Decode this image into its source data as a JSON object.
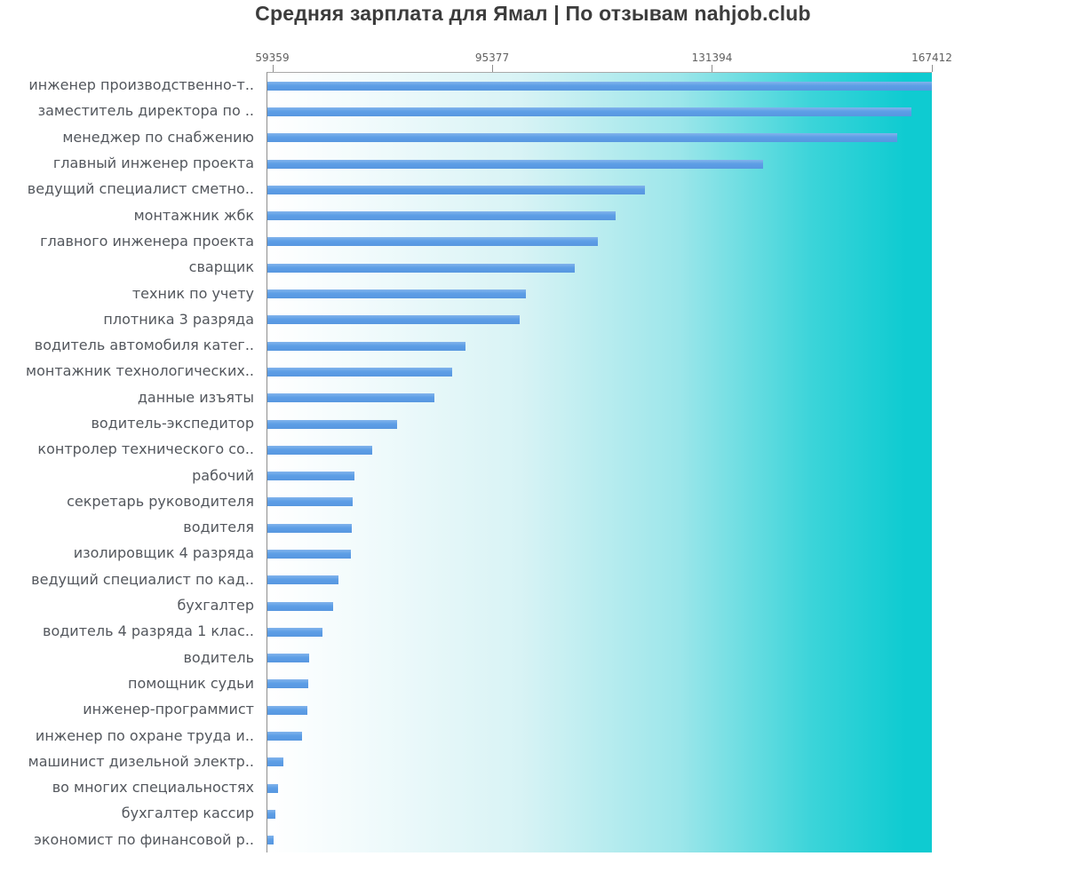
{
  "title": "Средняя зарплата для Ямал | По отзывам nahjob.club",
  "chart_data": {
    "type": "bar",
    "orientation": "horizontal",
    "title": "Средняя зарплата для Ямал | По отзывам nahjob.club",
    "xlabel": "",
    "ylabel": "",
    "x_ticks": [
      59359,
      95377,
      131394,
      167412
    ],
    "xlim": [
      58420,
      167412
    ],
    "grid": false,
    "legend": false,
    "categories": [
      "инженер производственно-т..",
      "заместитель директора по ..",
      "менеджер по снабжению",
      "главный инженер проекта",
      "ведущий специалист сметно..",
      "монтажник жбк",
      "главного инженера проекта",
      "сварщик",
      "техник по учету",
      "плотника 3 разряда",
      "водитель автомобиля катег..",
      "монтажник технологических..",
      "данные изъяты",
      "водитель-экспедитор",
      "контролер технического со..",
      "рабочий",
      "секретарь руководителя",
      "водителя",
      "изолировщик 4 разряда",
      "ведущий специалист по кад..",
      "бухгалтер",
      "водитель 4 разряда 1 клас..",
      "водитель",
      "помощник судьи",
      "инженер-программист",
      "инженер по охране труда и..",
      "машинист дизельной электр..",
      "во многих специальностях",
      "бухгалтер кассир",
      "экономист по финансовой р.."
    ],
    "values": [
      167412,
      163900,
      161600,
      139600,
      120200,
      115400,
      112600,
      108800,
      100700,
      99800,
      90800,
      88700,
      85800,
      79600,
      75600,
      72700,
      72400,
      72300,
      72100,
      70100,
      69200,
      67500,
      65300,
      65100,
      65000,
      64100,
      61000,
      60200,
      59700,
      59359
    ],
    "colors": {
      "bar": "#5b9ce4",
      "background_gradient_left": "#ffffff",
      "background_gradient_right": "#0fcbd1",
      "axis_line": "#8e8e8e",
      "tick_text": "#606060",
      "label_text": "#53575d",
      "title_text": "#3c3c3c"
    }
  }
}
